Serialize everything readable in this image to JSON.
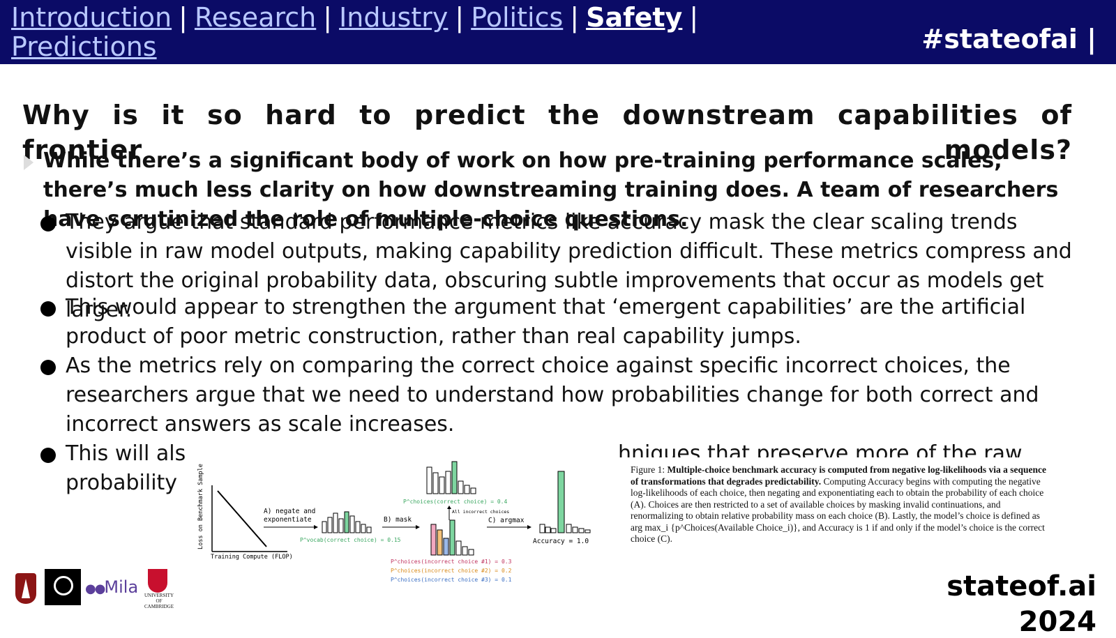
{
  "nav": {
    "items": [
      {
        "label": "Introduction",
        "active": false
      },
      {
        "label": "Research",
        "active": false
      },
      {
        "label": "Industry",
        "active": false
      },
      {
        "label": "Politics",
        "active": false
      },
      {
        "label": "Safety",
        "active": true
      },
      {
        "label": "Predictions",
        "active": false
      }
    ],
    "separator": "|"
  },
  "hashtag": "#stateofai |",
  "title": "Why is it so hard to predict the downstream capabilities of frontier models?",
  "intro": "While there’s a significant body of work on how pre-training performance scales, there’s much less clarity on how downstreaming training does. A team of researchers have scrutinized the role of multiple-choice questions.",
  "bullets": [
    "They argue that standard performance metrics like accuracy mask the clear scaling trends visible in raw model outputs, making capability prediction difficult. These metrics compress and distort the original probability data, obscuring subtle improvements that occur as models get larger.",
    "This would appear to strengthen the argument that ‘emergent capabilities’ are the artificial product of poor metric construction, rather than real capability jumps.",
    "As the metrics rely on comparing the correct choice against specific incorrect choices, the researchers argue that we need to understand how probabilities change for both correct and incorrect answers as scale increases.",
    "This will als",
    "probability"
  ],
  "bullet4_tail": "hniques that preserve more of the raw",
  "figure": {
    "loss_axis_label": "Loss on Benchmark Sample",
    "compute_axis_label": "Training Compute (FLOP)",
    "step_a": "A) negate and",
    "step_a2": "exponentiate",
    "vocab_label": "P^vocab(correct choice) = 0.15",
    "step_b": "B) mask",
    "choices_correct": "P^choices(correct choice) = 0.4",
    "incorrect_choices": "All incorrect choices",
    "incorrect_1": "P^choices(incorrect choice #1) = 0.3",
    "incorrect_2": "P^choices(incorrect choice #2) = 0.2",
    "incorrect_3": "P^choices(incorrect choice #3) = 0.1",
    "step_c": "C) argmax",
    "accuracy": "Accuracy = 1.0",
    "colors": {
      "correct": "#7ed6a0",
      "incorrect_1": "#f2a8c0",
      "incorrect_2": "#f5c27a",
      "incorrect_3": "#9ab8e8"
    }
  },
  "caption": {
    "lead": "Figure 1: ",
    "bold": "Multiple-choice benchmark accuracy is computed from negative log-likelihoods via a sequence of transformations that degrades predictability.",
    "rest": " Computing Accuracy begins with computing the negative log-likelihoods of each choice, then negating and exponentiating each to obtain the probability of each choice (A). Choices are then restricted to a set of available choices by masking invalid continuations, and renormalizing to obtain relative probability mass on each choice (B). Lastly, the model’s choice is defined as arg max_i {p^Choices(Available Choice_i)}, and Accuracy is 1 if and only if the model’s choice is the correct choice (C)."
  },
  "logos": {
    "mila": "Mila",
    "cambridge": "UNIVERSITY OF CAMBRIDGE"
  },
  "brand": "stateof.ai",
  "brand_year": "2024"
}
